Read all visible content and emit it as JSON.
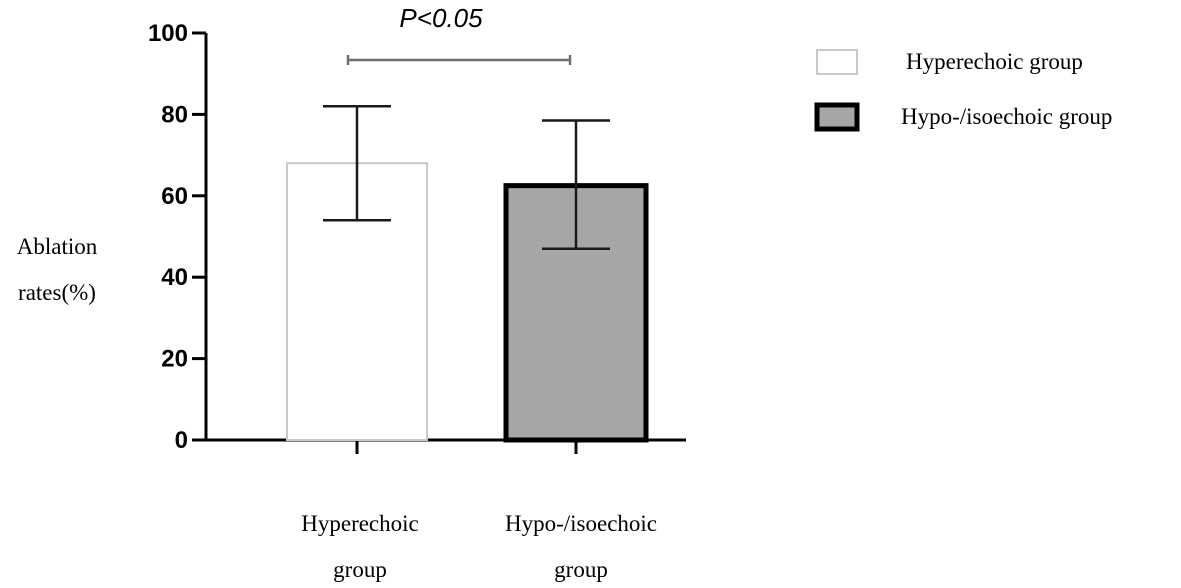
{
  "chart_data": {
    "type": "bar",
    "categories": [
      [
        "Hyperechoic",
        "group"
      ],
      [
        "Hypo-/isoechoic",
        "group"
      ]
    ],
    "series": [
      {
        "name": "Hyperechoic group",
        "value": 68,
        "error_upper": 82,
        "error_lower": 54,
        "fill": "#ffffff",
        "stroke": "#c8c8c8"
      },
      {
        "name": "Hypo-/isoechoic group",
        "value": 62.5,
        "error_upper": 78.5,
        "error_lower": 47,
        "fill": "#a6a6a8",
        "stroke": "#000000"
      }
    ],
    "ylabel": [
      "Ablation",
      "rates(%)"
    ],
    "ylim": [
      0,
      100
    ],
    "yticks": [
      0,
      20,
      40,
      60,
      80,
      100
    ],
    "significance": "P<0.05",
    "legend_position": "top-right",
    "grid": false
  }
}
